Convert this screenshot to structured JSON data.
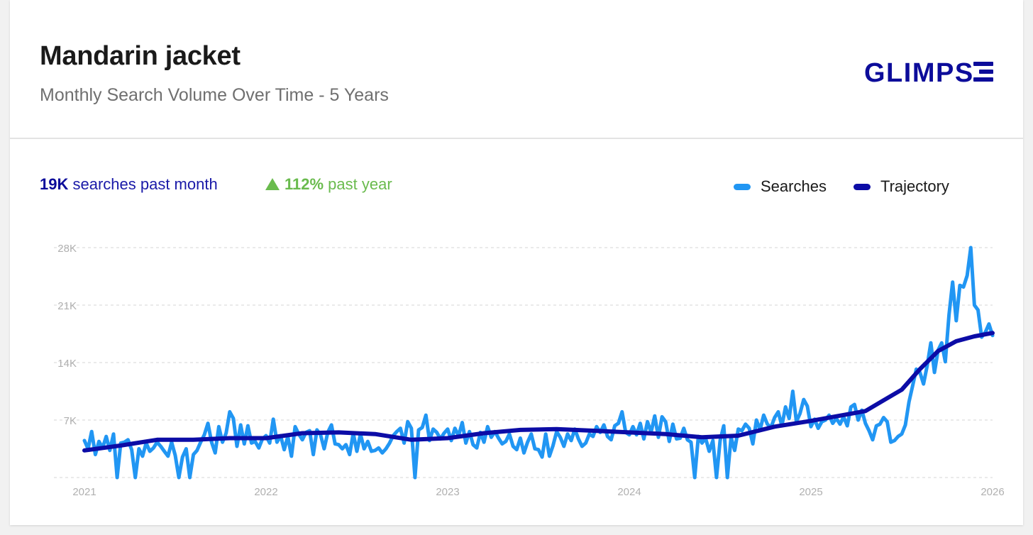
{
  "header": {
    "title": "Mandarin jacket",
    "subtitle": "Monthly Search Volume Over Time - 5 Years",
    "logo_text": "GLIMPSE"
  },
  "stats": {
    "month_value": "19K",
    "month_label": " searches past month",
    "year_value": "112%",
    "year_label": " past year"
  },
  "colors": {
    "searches": "#2196f3",
    "trajectory": "#0c0ca6",
    "growth": "#6abb4e",
    "brand": "#0c0c9a"
  },
  "chart_data": {
    "type": "line",
    "y_ticks": [
      "28K",
      "21K",
      "14K",
      "7K"
    ],
    "y_tick_values": [
      28000,
      21000,
      14000,
      7000
    ],
    "ylim": [
      0,
      28000
    ],
    "x_ticks": [
      "2021",
      "2022",
      "2023",
      "2024",
      "2025",
      "2026"
    ],
    "xlim": [
      2021,
      2026
    ],
    "legend": [
      "Searches",
      "Trajectory"
    ],
    "legend_position": "top-right",
    "grid": true,
    "series": [
      {
        "name": "Searches",
        "x": [
          2021.0,
          2021.02,
          2021.04,
          2021.06,
          2021.08,
          2021.1,
          2021.12,
          2021.14,
          2021.16,
          2021.18,
          2021.2,
          2021.22,
          2021.24,
          2021.26,
          2021.28,
          2021.3,
          2021.32,
          2021.34,
          2021.36,
          2021.38,
          2021.4,
          2021.42,
          2021.44,
          2021.46,
          2021.48,
          2021.5,
          2021.52,
          2021.54,
          2021.56,
          2021.58,
          2021.6,
          2021.62,
          2021.64,
          2021.66,
          2021.68,
          2021.7,
          2021.72,
          2021.74,
          2021.76,
          2021.78,
          2021.8,
          2021.82,
          2021.84,
          2021.86,
          2021.88,
          2021.9,
          2021.92,
          2021.94,
          2021.96,
          2021.98,
          2022.0,
          2022.02,
          2022.04,
          2022.06,
          2022.08,
          2022.1,
          2022.12,
          2022.14,
          2022.16,
          2022.18,
          2022.2,
          2022.22,
          2022.24,
          2022.26,
          2022.28,
          2022.3,
          2022.32,
          2022.34,
          2022.36,
          2022.38,
          2022.4,
          2022.42,
          2022.44,
          2022.46,
          2022.48,
          2022.5,
          2022.52,
          2022.54,
          2022.56,
          2022.58,
          2022.6,
          2022.62,
          2022.64,
          2022.66,
          2022.68,
          2022.7,
          2022.72,
          2022.74,
          2022.76,
          2022.78,
          2022.8,
          2022.82,
          2022.84,
          2022.86,
          2022.88,
          2022.9,
          2022.92,
          2022.94,
          2022.96,
          2022.98,
          2023.0,
          2023.02,
          2023.04,
          2023.06,
          2023.08,
          2023.1,
          2023.12,
          2023.14,
          2023.16,
          2023.18,
          2023.2,
          2023.22,
          2023.24,
          2023.26,
          2023.28,
          2023.3,
          2023.32,
          2023.34,
          2023.36,
          2023.38,
          2023.4,
          2023.42,
          2023.44,
          2023.46,
          2023.48,
          2023.5,
          2023.52,
          2023.54,
          2023.56,
          2023.58,
          2023.6,
          2023.62,
          2023.64,
          2023.66,
          2023.68,
          2023.7,
          2023.72,
          2023.74,
          2023.76,
          2023.78,
          2023.8,
          2023.82,
          2023.84,
          2023.86,
          2023.88,
          2023.9,
          2023.92,
          2023.94,
          2023.96,
          2023.98,
          2024.0,
          2024.02,
          2024.04,
          2024.06,
          2024.08,
          2024.1,
          2024.12,
          2024.14,
          2024.16,
          2024.18,
          2024.2,
          2024.22,
          2024.24,
          2024.26,
          2024.28,
          2024.3,
          2024.32,
          2024.34,
          2024.36,
          2024.38,
          2024.4,
          2024.42,
          2024.44,
          2024.46,
          2024.48,
          2024.5,
          2024.52,
          2024.54,
          2024.56,
          2024.58,
          2024.6,
          2024.62,
          2024.64,
          2024.66,
          2024.68,
          2024.7,
          2024.72,
          2024.74,
          2024.76,
          2024.78,
          2024.8,
          2024.82,
          2024.84,
          2024.86,
          2024.88,
          2024.9,
          2024.92,
          2024.94,
          2024.96,
          2024.98,
          2025.0,
          2025.02,
          2025.04,
          2025.06,
          2025.08,
          2025.1,
          2025.12,
          2025.14,
          2025.16,
          2025.18,
          2025.2,
          2025.22,
          2025.24,
          2025.26,
          2025.28,
          2025.3,
          2025.32,
          2025.34,
          2025.36,
          2025.38,
          2025.4,
          2025.42,
          2025.44,
          2025.46,
          2025.48,
          2025.5,
          2025.52,
          2025.54,
          2025.56,
          2025.58,
          2025.6,
          2025.62,
          2025.64,
          2025.66,
          2025.68,
          2025.7,
          2025.72,
          2025.74,
          2025.76,
          2025.78,
          2025.8,
          2025.82,
          2025.84,
          2025.86,
          2025.88,
          2025.9,
          2025.92,
          2025.94,
          2025.96,
          2025.98,
          2026.0
        ],
        "values": [
          4500,
          3500,
          5600,
          2800,
          4400,
          3600,
          5000,
          3300,
          5300,
          0,
          4200,
          4300,
          4600,
          3400,
          0,
          3500,
          2600,
          4200,
          3200,
          3600,
          4300,
          3800,
          3200,
          2600,
          4300,
          2700,
          0,
          2500,
          3500,
          0,
          2800,
          3300,
          4300,
          5200,
          6600,
          4300,
          3000,
          6200,
          4300,
          5400,
          8000,
          7200,
          3800,
          6400,
          4100,
          6300,
          4200,
          4400,
          3600,
          4700,
          5100,
          4200,
          7100,
          4300,
          5100,
          3400,
          5000,
          2600,
          6200,
          5300,
          4600,
          5500,
          5700,
          2800,
          5800,
          5200,
          3500,
          5500,
          6400,
          4100,
          4000,
          3500,
          4000,
          2800,
          5400,
          3200,
          5300,
          3500,
          4400,
          3200,
          3300,
          3600,
          3000,
          3500,
          4200,
          5100,
          5600,
          6000,
          4200,
          6800,
          6000,
          0,
          5800,
          6100,
          7600,
          4500,
          5900,
          5500,
          4700,
          5400,
          5900,
          4500,
          6000,
          5100,
          6700,
          4200,
          5600,
          4000,
          3600,
          5500,
          4300,
          6200,
          4900,
          5600,
          4800,
          4100,
          4400,
          5300,
          3800,
          3400,
          4800,
          3000,
          4300,
          5300,
          3500,
          3400,
          2500,
          5300,
          2600,
          3900,
          5600,
          4900,
          3800,
          5300,
          4500,
          5900,
          4700,
          3800,
          4200,
          5300,
          5000,
          6200,
          5500,
          6400,
          5000,
          4600,
          6300,
          6600,
          8000,
          5500,
          5200,
          6200,
          5200,
          6600,
          4700,
          6800,
          5500,
          7500,
          4900,
          7400,
          6800,
          4400,
          6500,
          4700,
          4800,
          6000,
          4600,
          4300,
          0,
          5000,
          4200,
          4800,
          3200,
          4500,
          0,
          4500,
          6300,
          0,
          4900,
          3300,
          5900,
          5700,
          6500,
          6000,
          4100,
          7000,
          5800,
          7600,
          6500,
          6100,
          7300,
          8000,
          6300,
          8600,
          7200,
          10500,
          6800,
          7800,
          9500,
          8700,
          6200,
          7100,
          6000,
          6800,
          7000,
          7600,
          6600,
          7200,
          6500,
          7400,
          6300,
          8600,
          8900,
          7000,
          8200,
          6600,
          5700,
          4600,
          6300,
          6500,
          7300,
          6800,
          4300,
          4500,
          5000,
          5300,
          6400,
          9200,
          11200,
          13200,
          12800,
          11400,
          13600,
          16400,
          12800,
          15500,
          16400,
          14100,
          19800,
          23800,
          19100,
          23400,
          23200,
          24600,
          28000,
          21000,
          20400,
          17100,
          17700,
          18700,
          17300
        ]
      },
      {
        "name": "Trajectory",
        "x": [
          2021.0,
          2021.2,
          2021.4,
          2021.6,
          2021.8,
          2022.0,
          2022.2,
          2022.4,
          2022.6,
          2022.8,
          2023.0,
          2023.2,
          2023.4,
          2023.6,
          2023.8,
          2024.0,
          2024.2,
          2024.4,
          2024.6,
          2024.8,
          2025.0,
          2025.2,
          2025.3,
          2025.4,
          2025.5,
          2025.6,
          2025.7,
          2025.8,
          2025.9,
          2026.0
        ],
        "values": [
          3300,
          3900,
          4600,
          4600,
          4800,
          4800,
          5400,
          5500,
          5300,
          4600,
          4800,
          5400,
          5800,
          5900,
          5700,
          5500,
          5300,
          4900,
          5100,
          6200,
          6900,
          7700,
          8100,
          9400,
          10700,
          13200,
          15400,
          16600,
          17200,
          17600
        ]
      }
    ]
  }
}
